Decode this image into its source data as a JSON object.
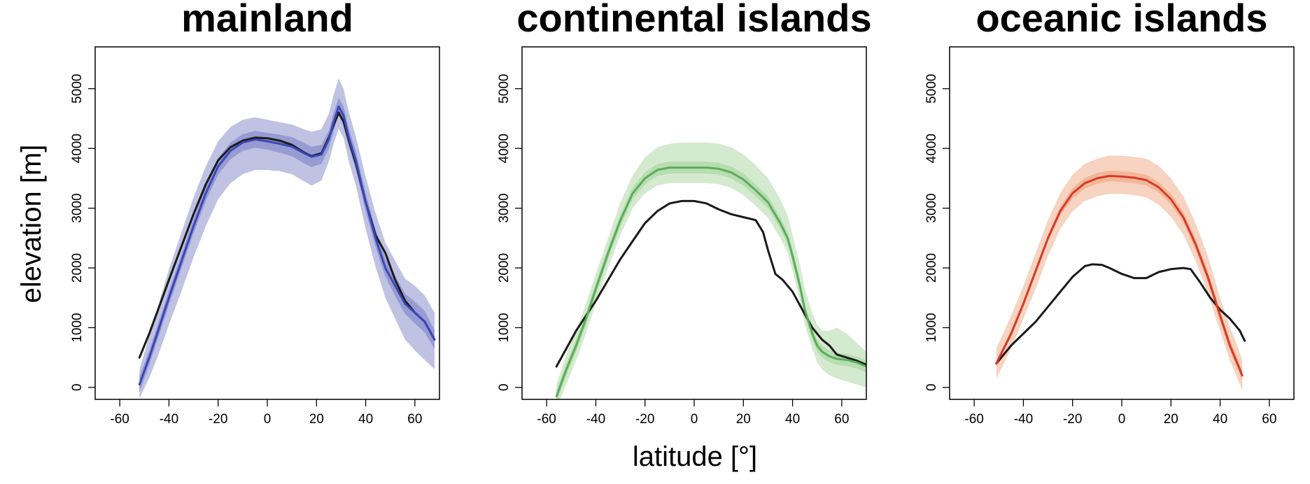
{
  "figure": {
    "xlabel": "latitude [°]",
    "ylabel": "elevation [m]"
  },
  "chart_data": [
    {
      "type": "line",
      "title": "mainland",
      "xlim": [
        -70,
        70
      ],
      "ylim": [
        -200,
        5700
      ],
      "xticks": [
        -60,
        -40,
        -20,
        0,
        20,
        40,
        60
      ],
      "yticks": [
        0,
        1000,
        2000,
        3000,
        4000,
        5000
      ],
      "color": "#3a46b8",
      "band_color": "#7f86c8",
      "series": [
        {
          "x": [
            -52,
            -48,
            -44,
            -40,
            -35,
            -30,
            -25,
            -20,
            -15,
            -10,
            -5,
            0,
            5,
            10,
            15,
            18,
            22,
            25,
            27,
            29,
            31,
            33,
            36,
            40,
            44,
            48,
            52,
            56,
            60,
            64,
            68
          ],
          "y": [
            50,
            500,
            1000,
            1500,
            2100,
            2700,
            3250,
            3700,
            3960,
            4100,
            4150,
            4120,
            4080,
            4030,
            3920,
            3860,
            3900,
            4150,
            4450,
            4700,
            4550,
            4200,
            3800,
            3100,
            2500,
            2000,
            1700,
            1400,
            1250,
            1100,
            800
          ],
          "lower_inner": [
            -80,
            380,
            880,
            1380,
            1980,
            2580,
            3120,
            3560,
            3820,
            3960,
            4010,
            3980,
            3930,
            3870,
            3750,
            3690,
            3740,
            4000,
            4300,
            4550,
            4400,
            4050,
            3650,
            2950,
            2350,
            1850,
            1530,
            1230,
            1070,
            920,
            640
          ],
          "upper_inner": [
            180,
            620,
            1120,
            1620,
            2220,
            2820,
            3380,
            3840,
            4100,
            4240,
            4290,
            4260,
            4230,
            4190,
            4090,
            4030,
            4060,
            4300,
            4600,
            4850,
            4700,
            4350,
            3950,
            3250,
            2650,
            2150,
            1870,
            1570,
            1430,
            1280,
            960
          ],
          "lower_outer": [
            -180,
            160,
            580,
            1050,
            1600,
            2180,
            2700,
            3150,
            3420,
            3570,
            3640,
            3640,
            3620,
            3570,
            3450,
            3380,
            3460,
            3780,
            4080,
            4330,
            4180,
            3800,
            3380,
            2650,
            2020,
            1500,
            1150,
            800,
            620,
            460,
            300
          ],
          "upper_outer": [
            300,
            860,
            1420,
            1980,
            2580,
            3180,
            3700,
            4120,
            4360,
            4480,
            4520,
            4480,
            4440,
            4400,
            4320,
            4280,
            4320,
            4580,
            4900,
            5170,
            5000,
            4630,
            4200,
            3520,
            2920,
            2420,
            2120,
            1820,
            1700,
            1540,
            1250
          ]
        },
        {
          "x": [
            -52,
            -48,
            -44,
            -40,
            -35,
            -30,
            -25,
            -20,
            -15,
            -10,
            -5,
            0,
            5,
            10,
            15,
            18,
            22,
            25,
            27,
            29,
            31,
            33,
            36,
            40,
            44,
            48,
            52,
            56,
            60,
            64,
            68
          ],
          "y": [
            500,
            900,
            1350,
            1800,
            2350,
            2900,
            3400,
            3800,
            4020,
            4130,
            4180,
            4170,
            4130,
            4060,
            3930,
            3870,
            3920,
            4180,
            4400,
            4600,
            4450,
            4150,
            3750,
            3100,
            2550,
            2250,
            1800,
            1450,
            1250,
            1100,
            800
          ]
        }
      ]
    },
    {
      "type": "line",
      "title": "continental islands",
      "xlim": [
        -70,
        70
      ],
      "ylim": [
        -200,
        5700
      ],
      "xticks": [
        -60,
        -40,
        -20,
        0,
        20,
        40,
        60
      ],
      "yticks": [
        0,
        1000,
        2000,
        3000,
        4000,
        5000
      ],
      "color": "#5aad5a",
      "band_color": "#a9d6a0",
      "series": [
        {
          "x": [
            -56,
            -52,
            -48,
            -44,
            -40,
            -35,
            -30,
            -25,
            -20,
            -15,
            -10,
            -5,
            0,
            5,
            10,
            15,
            20,
            25,
            30,
            35,
            38,
            40,
            43,
            45,
            48,
            50,
            52,
            55,
            58,
            62,
            66,
            70
          ],
          "y": [
            -150,
            300,
            700,
            1150,
            1650,
            2250,
            2800,
            3250,
            3500,
            3640,
            3680,
            3680,
            3680,
            3680,
            3660,
            3600,
            3480,
            3300,
            3100,
            2750,
            2500,
            2200,
            1700,
            1300,
            900,
            700,
            600,
            520,
            480,
            460,
            420,
            350
          ],
          "lower_inner": [
            -250,
            200,
            600,
            1050,
            1550,
            2150,
            2700,
            3150,
            3400,
            3540,
            3580,
            3580,
            3580,
            3580,
            3560,
            3500,
            3380,
            3200,
            3000,
            2650,
            2400,
            2100,
            1600,
            1200,
            800,
            600,
            500,
            420,
            380,
            360,
            320,
            250
          ],
          "upper_inner": [
            -50,
            400,
            800,
            1250,
            1750,
            2350,
            2900,
            3350,
            3600,
            3740,
            3780,
            3780,
            3780,
            3780,
            3760,
            3700,
            3580,
            3400,
            3200,
            2850,
            2600,
            2300,
            1800,
            1400,
            1000,
            800,
            700,
            620,
            580,
            560,
            520,
            450
          ],
          "lower_outer": [
            -350,
            50,
            450,
            900,
            1400,
            2000,
            2550,
            3000,
            3250,
            3380,
            3420,
            3420,
            3420,
            3420,
            3400,
            3340,
            3220,
            3040,
            2840,
            2500,
            2250,
            1950,
            1450,
            1050,
            650,
            420,
            300,
            200,
            150,
            100,
            50,
            0
          ],
          "upper_outer": [
            50,
            550,
            950,
            1400,
            1900,
            2500,
            3100,
            3550,
            3850,
            4020,
            4080,
            4100,
            4100,
            4100,
            4080,
            4020,
            3900,
            3720,
            3500,
            3150,
            2880,
            2550,
            2050,
            1650,
            1250,
            1050,
            950,
            950,
            1000,
            900,
            750,
            600
          ]
        },
        {
          "x": [
            -56,
            -52,
            -48,
            -44,
            -40,
            -35,
            -30,
            -25,
            -20,
            -15,
            -10,
            -5,
            0,
            5,
            10,
            15,
            20,
            25,
            28,
            30,
            33,
            36,
            40,
            44,
            48,
            52,
            55,
            58,
            62,
            66,
            70
          ],
          "y": [
            350,
            650,
            950,
            1200,
            1450,
            1800,
            2150,
            2450,
            2750,
            2950,
            3080,
            3120,
            3120,
            3080,
            2980,
            2900,
            2850,
            2800,
            2600,
            2300,
            1900,
            1800,
            1600,
            1300,
            1000,
            800,
            700,
            550,
            500,
            450,
            380
          ]
        }
      ]
    },
    {
      "type": "line",
      "title": "oceanic islands",
      "xlim": [
        -70,
        70
      ],
      "ylim": [
        -200,
        5700
      ],
      "xticks": [
        -60,
        -40,
        -20,
        0,
        20,
        40,
        60
      ],
      "yticks": [
        0,
        1000,
        2000,
        3000,
        4000,
        5000
      ],
      "color": "#d63b26",
      "band_color": "#f0a884",
      "series": [
        {
          "x": [
            -51,
            -45,
            -40,
            -35,
            -30,
            -25,
            -20,
            -15,
            -10,
            -5,
            0,
            5,
            10,
            15,
            20,
            25,
            30,
            35,
            40,
            44,
            47,
            49
          ],
          "y": [
            400,
            900,
            1400,
            1950,
            2500,
            2950,
            3250,
            3420,
            3500,
            3540,
            3530,
            3510,
            3470,
            3350,
            3150,
            2850,
            2400,
            1850,
            1200,
            700,
            400,
            200
          ],
          "lower_inner": [
            350,
            850,
            1350,
            1900,
            2450,
            2880,
            3160,
            3330,
            3410,
            3450,
            3440,
            3420,
            3380,
            3260,
            3060,
            2760,
            2310,
            1760,
            1110,
            610,
            310,
            110
          ],
          "upper_inner": [
            450,
            950,
            1450,
            2000,
            2550,
            3020,
            3340,
            3510,
            3590,
            3630,
            3620,
            3600,
            3560,
            3440,
            3240,
            2940,
            2490,
            1940,
            1290,
            790,
            490,
            290
          ],
          "lower_outer": [
            150,
            650,
            1150,
            1650,
            2200,
            2650,
            2950,
            3120,
            3200,
            3240,
            3240,
            3220,
            3180,
            3060,
            2860,
            2560,
            2120,
            1580,
            940,
            450,
            150,
            -50
          ],
          "upper_outer": [
            650,
            1200,
            1700,
            2250,
            2800,
            3250,
            3560,
            3740,
            3830,
            3880,
            3880,
            3860,
            3830,
            3710,
            3500,
            3200,
            2750,
            2200,
            1500,
            1000,
            700,
            450
          ]
        },
        {
          "x": [
            -51,
            -45,
            -40,
            -35,
            -30,
            -25,
            -20,
            -15,
            -12,
            -8,
            -5,
            0,
            5,
            10,
            15,
            20,
            25,
            28,
            32,
            36,
            40,
            44,
            48,
            50
          ],
          "y": [
            400,
            700,
            900,
            1100,
            1350,
            1600,
            1850,
            2030,
            2060,
            2050,
            2000,
            1900,
            1830,
            1830,
            1930,
            1980,
            2000,
            1980,
            1750,
            1500,
            1300,
            1150,
            950,
            780
          ]
        }
      ]
    }
  ]
}
